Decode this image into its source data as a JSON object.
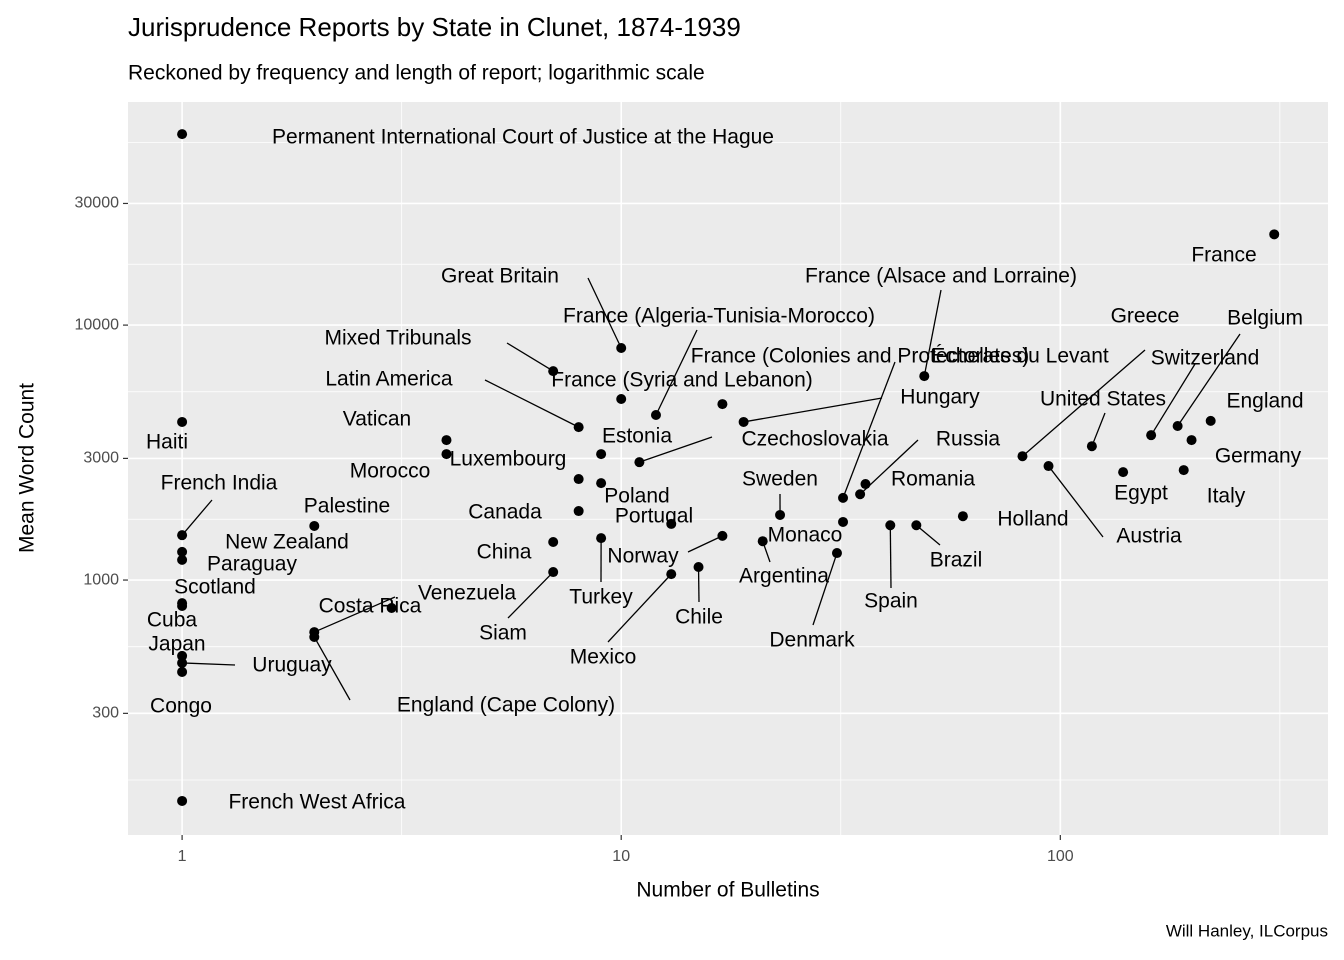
{
  "chart_data": {
    "type": "scatter",
    "title": "Jurisprudence Reports by State in Clunet, 1874-1939",
    "subtitle": "Reckoned by frequency and length of report; logarithmic scale",
    "x_label": "Number of Bulletins",
    "y_label": "Mean Word Count",
    "caption": "Will Hanley, ILCorpus",
    "labels": [
      "Permanent International Court of Justice at the Hague",
      "France",
      "Great Britain",
      "France (Alsace and Lorraine)",
      "Mixed Tribunals",
      "France (Algeria-Tunisia-Morocco)",
      "France (Colonies and Protectorates)",
      "Échelles du Levant",
      "France (Syria and Lebanon)",
      "Latin America",
      "Hungary",
      "Vatican",
      "Morocco",
      "Estonia",
      "Luxembourg",
      "Poland",
      "Canada",
      "Portugal",
      "Turkey",
      "Norway",
      "China",
      "Siam",
      "Mexico",
      "Chile",
      "Argentina",
      "Sweden",
      "Monaco",
      "Denmark",
      "Czechoslovakia",
      "Russia",
      "Romania",
      "Greece",
      "Switzerland",
      "Belgium",
      "England",
      "Germany",
      "Italy",
      "Egypt",
      "United States",
      "Austria",
      "Holland",
      "Brazil",
      "Spain",
      "Haiti",
      "French India",
      "New Zealand",
      "Paraguay",
      "Scotland",
      "Cuba",
      "Japan",
      "Uruguay",
      "Congo",
      "French West Africa",
      "Palestine",
      "Costa Rica",
      "Venezuela",
      "England (Cape Colony)"
    ],
    "x": [
      1,
      307,
      10,
      49,
      7,
      12,
      17,
      32,
      10,
      8,
      19,
      4,
      4,
      9,
      8,
      9,
      8,
      13,
      9,
      17,
      7,
      7,
      13,
      15,
      21,
      23,
      32,
      31,
      11,
      35,
      36,
      82,
      161,
      185,
      220,
      199,
      191,
      139,
      118,
      94,
      60,
      47,
      41,
      1,
      1,
      1,
      1,
      1,
      1,
      1,
      1,
      1,
      1,
      2,
      3,
      2,
      2
    ],
    "values": [
      56100,
      22700,
      8130,
      6310,
      6600,
      4440,
      4900,
      2100,
      5130,
      3980,
      4170,
      3540,
      3120,
      3120,
      2490,
      2400,
      1865,
      1660,
      1460,
      1490,
      1410,
      1075,
      1055,
      1125,
      1420,
      1800,
      1690,
      1276,
      2900,
      2170,
      2380,
      3060,
      3700,
      4020,
      4210,
      3540,
      2700,
      2650,
      3350,
      2800,
      1780,
      1640,
      1640,
      4170,
      1500,
      1290,
      1200,
      812,
      791,
      504,
      473,
      436,
      136,
      1630,
      777,
      625,
      598
    ],
    "color": "#000000",
    "xlim": [
      0.753,
      407
    ],
    "ylim": [
      100,
      75000
    ],
    "xticks": [
      1,
      10,
      100
    ],
    "yticks": [
      300,
      1000,
      3000,
      10000,
      30000
    ],
    "log_x": true,
    "log_y": true,
    "grid": true
  }
}
